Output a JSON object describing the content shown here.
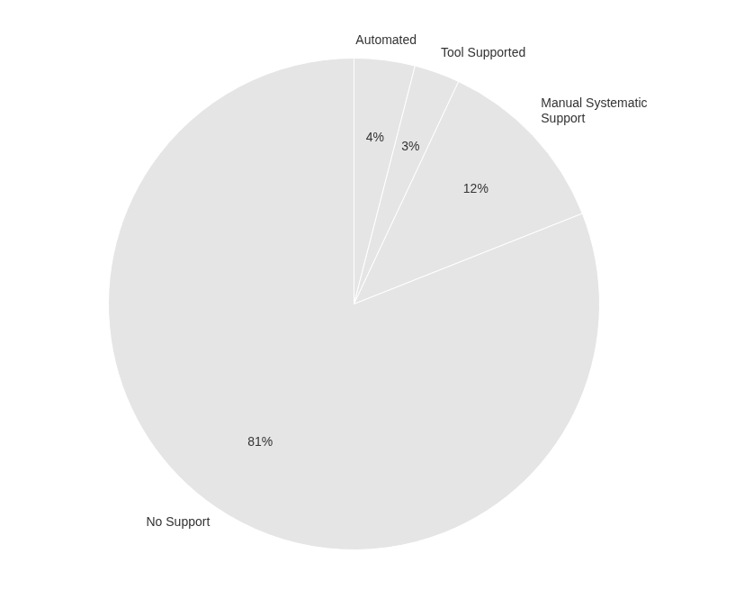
{
  "chart_data": {
    "type": "pie",
    "categories": [
      "Automated",
      "Tool Supported",
      "Manual Systematic\nSupport",
      "No Support"
    ],
    "values": [
      4,
      3,
      12,
      81
    ],
    "value_labels": [
      "4%",
      "3%",
      "12%",
      "81%"
    ],
    "data_labels": true
  }
}
